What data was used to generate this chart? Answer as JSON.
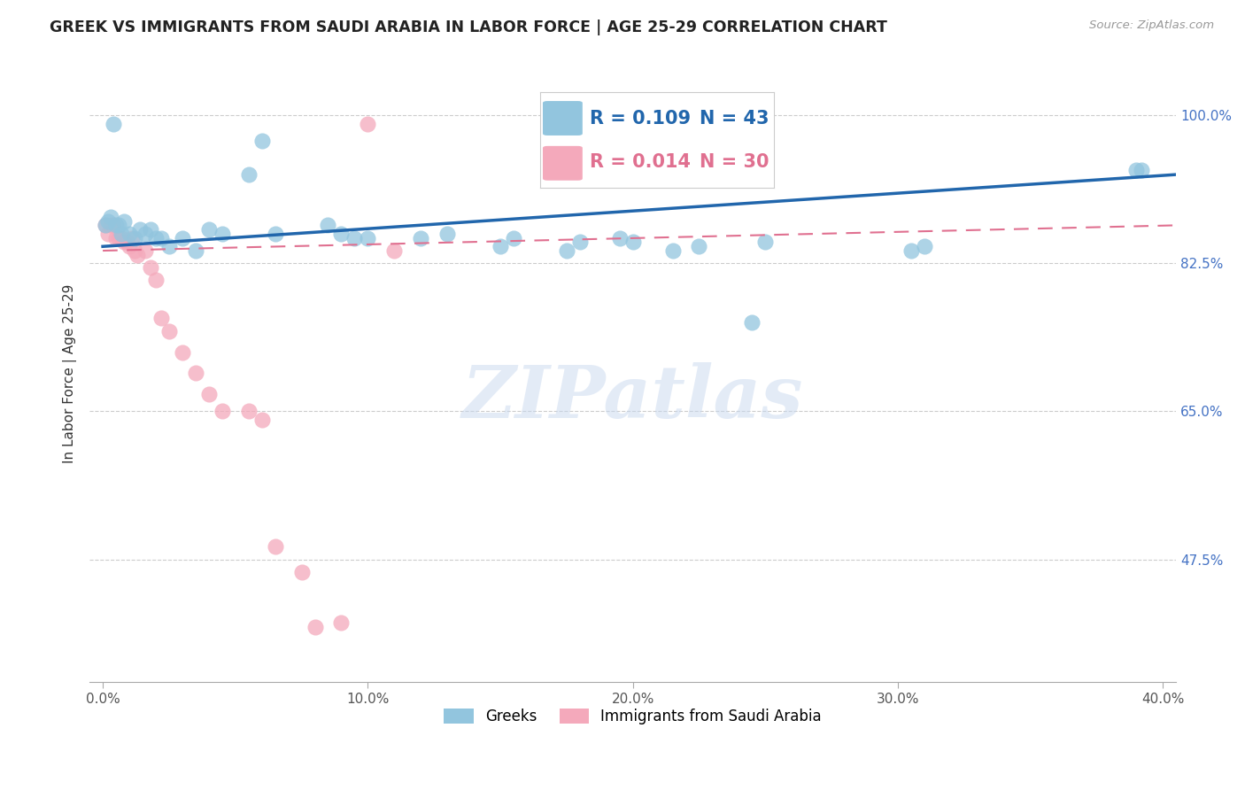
{
  "title": "GREEK VS IMMIGRANTS FROM SAUDI ARABIA IN LABOR FORCE | AGE 25-29 CORRELATION CHART",
  "source": "Source: ZipAtlas.com",
  "ylabel": "In Labor Force | Age 25-29",
  "xlabel_ticks": [
    "0.0%",
    "10.0%",
    "20.0%",
    "30.0%",
    "40.0%"
  ],
  "xlabel_vals": [
    0.0,
    0.1,
    0.2,
    0.3,
    0.4
  ],
  "ytick_labels": [
    "100.0%",
    "82.5%",
    "65.0%",
    "47.5%"
  ],
  "ytick_vals": [
    1.0,
    0.825,
    0.65,
    0.475
  ],
  "xlim": [
    -0.005,
    0.405
  ],
  "ylim": [
    0.33,
    1.06
  ],
  "legend_blue_r": "R = 0.109",
  "legend_blue_n": "N = 43",
  "legend_pink_r": "R = 0.014",
  "legend_pink_n": "N = 30",
  "legend_label_blue": "Greeks",
  "legend_label_pink": "Immigrants from Saudi Arabia",
  "blue_color": "#92c5de",
  "pink_color": "#f4a9bb",
  "trendline_blue_color": "#2166ac",
  "trendline_pink_color": "#e07090",
  "watermark": "ZIPatlas",
  "blue_scatter_x": [
    0.001,
    0.002,
    0.003,
    0.004,
    0.005,
    0.006,
    0.007,
    0.008,
    0.01,
    0.012,
    0.014,
    0.016,
    0.018,
    0.02,
    0.022,
    0.025,
    0.03,
    0.035,
    0.04,
    0.045,
    0.055,
    0.06,
    0.065,
    0.085,
    0.09,
    0.095,
    0.1,
    0.12,
    0.13,
    0.15,
    0.155,
    0.175,
    0.18,
    0.195,
    0.2,
    0.215,
    0.225,
    0.245,
    0.25,
    0.305,
    0.31,
    0.39,
    0.392
  ],
  "blue_scatter_y": [
    0.87,
    0.875,
    0.88,
    0.99,
    0.87,
    0.87,
    0.86,
    0.875,
    0.86,
    0.855,
    0.865,
    0.86,
    0.865,
    0.855,
    0.855,
    0.845,
    0.855,
    0.84,
    0.865,
    0.86,
    0.93,
    0.97,
    0.86,
    0.87,
    0.86,
    0.855,
    0.855,
    0.855,
    0.86,
    0.845,
    0.855,
    0.84,
    0.85,
    0.855,
    0.85,
    0.84,
    0.845,
    0.755,
    0.85,
    0.84,
    0.845,
    0.935,
    0.935
  ],
  "pink_scatter_x": [
    0.001,
    0.002,
    0.003,
    0.004,
    0.005,
    0.006,
    0.007,
    0.008,
    0.009,
    0.01,
    0.011,
    0.012,
    0.013,
    0.016,
    0.018,
    0.02,
    0.022,
    0.025,
    0.03,
    0.035,
    0.04,
    0.045,
    0.055,
    0.06,
    0.065,
    0.075,
    0.08,
    0.09,
    0.1,
    0.11
  ],
  "pink_scatter_y": [
    0.87,
    0.86,
    0.87,
    0.87,
    0.855,
    0.855,
    0.855,
    0.85,
    0.85,
    0.845,
    0.855,
    0.84,
    0.835,
    0.84,
    0.82,
    0.805,
    0.76,
    0.745,
    0.72,
    0.695,
    0.67,
    0.65,
    0.65,
    0.64,
    0.49,
    0.46,
    0.395,
    0.4,
    0.99,
    0.84
  ],
  "blue_trend_x": [
    0.0,
    0.405
  ],
  "blue_trend_y": [
    0.845,
    0.93
  ],
  "pink_trend_x": [
    0.0,
    0.405
  ],
  "pink_trend_y": [
    0.84,
    0.87
  ]
}
